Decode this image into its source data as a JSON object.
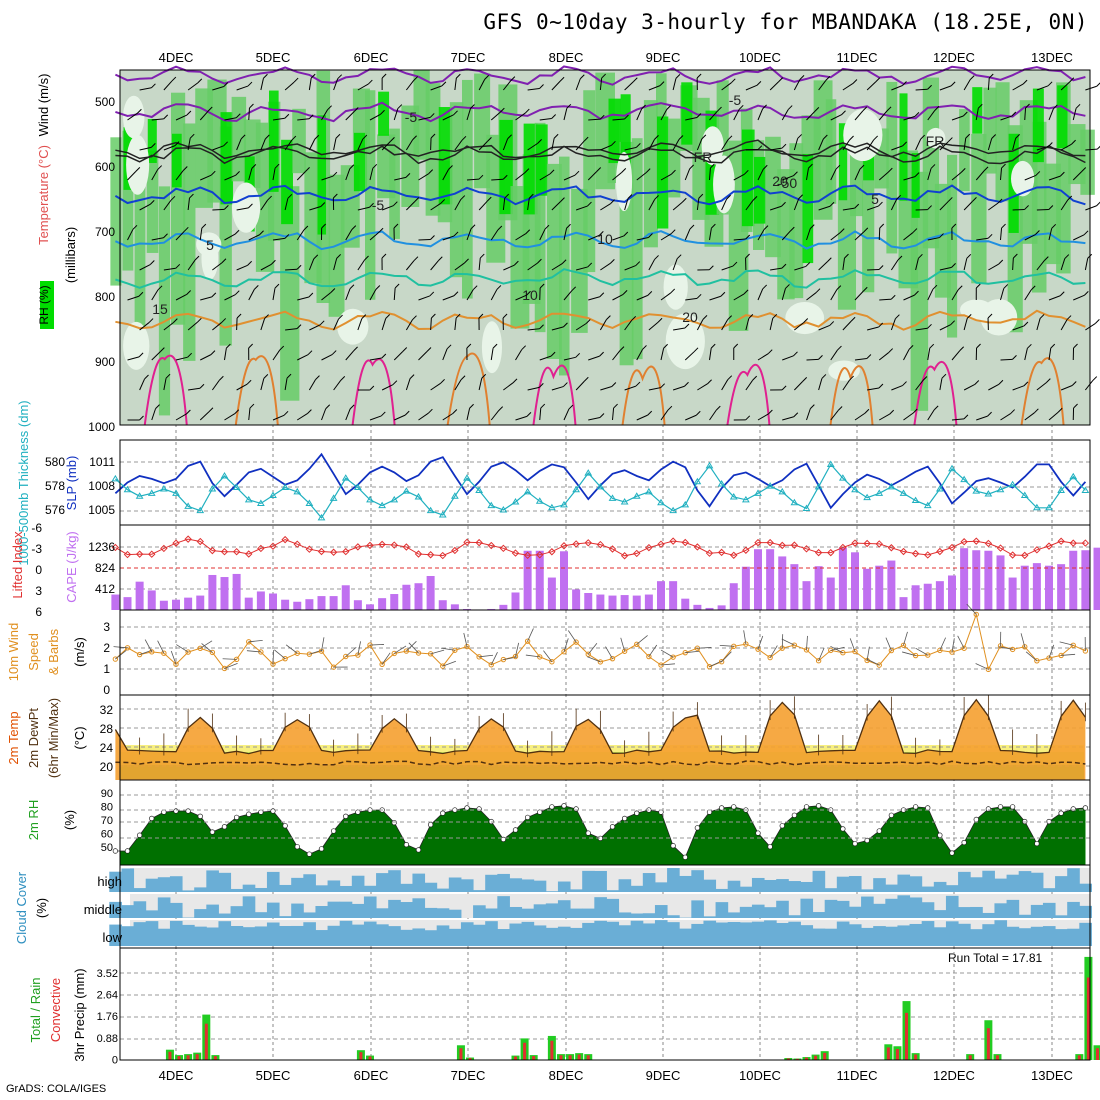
{
  "title": "GFS 0~10day 3-hourly for MBANDAKA (18.25E, 0N)",
  "credit": "GrADS: COLA/IGES",
  "dates": [
    "4DEC",
    "5DEC",
    "6DEC",
    "7DEC",
    "8DEC",
    "9DEC",
    "10DEC",
    "11DEC",
    "12DEC",
    "13DEC"
  ],
  "colors": {
    "rh_dark": "#00dd00",
    "rh_mid": "#66cc66",
    "rh_light": "#c8d8c8",
    "rh_pale": "#e8f4e8",
    "slp": "#1030c0",
    "thickness": "#20b0c0",
    "lifted": "#e03030",
    "cape": "#c070f0",
    "wind": "#e09020",
    "temp_hot": "#e05000",
    "rh2m": "#00b000",
    "cloud": "#6aaed6",
    "cloud_clear": "#e8e8e8",
    "precip_total": "#22cc22",
    "precip_conv": "#e03030"
  },
  "panels": {
    "upper": {
      "ylabel_rh": "RH (%)",
      "ylabel_temp": "Temperature (°C)",
      "ylabel_wind": "Wind (m/s)",
      "ylabel_mb": "(millibars)",
      "y_ticks": [
        "500",
        "600",
        "700",
        "800",
        "900",
        "1000"
      ],
      "contour_labels": [
        "-5",
        "-5",
        "FR",
        "FR",
        "-5",
        "5",
        "5",
        "10",
        "10",
        "15",
        "20",
        "20",
        "-50"
      ]
    },
    "slp": {
      "ylabel_left": "1000-500mb Thickness (dm)",
      "ylabel_right": "SLP (mb)",
      "left_ticks": [
        "580",
        "578",
        "576"
      ],
      "right_ticks": [
        "1011",
        "1008",
        "1005"
      ]
    },
    "cape": {
      "ylabel_left": "Lifted Index",
      "ylabel_right": "CAPE (J/kg)",
      "left_ticks": [
        "-6",
        "-3",
        "0",
        "3",
        "6"
      ],
      "right_ticks": [
        "1236",
        "824",
        "412"
      ]
    },
    "wind10": {
      "ylabel": "10m Wind Speed & Barbs",
      "unit": "(m/s)",
      "ticks": [
        "3",
        "2",
        "1",
        "0"
      ]
    },
    "temp2m": {
      "ylabel": "2m Temp 2m DewPt (6hr Min/Max) (°C)",
      "ticks": [
        "32",
        "28",
        "24",
        "20"
      ]
    },
    "rh2m": {
      "ylabel": "2m RH",
      "unit": "(%)",
      "ticks": [
        "90",
        "80",
        "70",
        "60",
        "50"
      ]
    },
    "cloud": {
      "ylabel": "Cloud Cover",
      "unit": "(%)",
      "levels": [
        "high",
        "middle",
        "low"
      ]
    },
    "precip": {
      "ylabel_total": "Total / Rain",
      "ylabel_conv": "Convective",
      "ylabel": "3hr Precip (mm)",
      "ticks": [
        "3.52",
        "2.64",
        "1.76",
        "0.88",
        "0"
      ],
      "run_total": "Run Total = 17.81"
    }
  },
  "chart_data": [
    {
      "type": "line",
      "title": "SLP (mb)",
      "series": [
        {
          "name": "SLP",
          "values": [
            1007.0,
            1008.5,
            1009.4,
            1009.0,
            1008.4,
            1009.0,
            1010.8,
            1011.4,
            1008.4,
            1006.6,
            1008.2,
            1009.9,
            1010.4,
            1009.3,
            1008.2,
            1008.8,
            1010.4,
            1012.4,
            1009.7,
            1006.9,
            1008.2,
            1009.9,
            1010.7,
            1009.9,
            1008.7,
            1009.5,
            1011.4,
            1012.0,
            1009.4,
            1006.9,
            1008.6,
            1010.7,
            1011.3,
            1010.2,
            1008.8,
            1010.1,
            1011.0,
            1010.6,
            1008.5,
            1006.2,
            1008.1,
            1009.7,
            1010.2,
            1009.4,
            1008.8,
            1010.3,
            1011.4,
            1010.6,
            1007.4,
            1005.2,
            1007.7,
            1009.5,
            1009.9,
            1009.0,
            1008.0,
            1008.8,
            1010.3,
            1011.1,
            1008.1,
            1005.0,
            1006.9,
            1008.5,
            1009.6,
            1009.0,
            1008.1,
            1009.0,
            1010.0,
            1010.7,
            1008.4,
            1005.6,
            1007.1,
            1008.7,
            1009.1,
            1008.5,
            1007.8,
            1009.3,
            1011.0,
            1011.0,
            1008.6,
            1006.7,
            1008.6
          ]
        }
      ]
    },
    {
      "type": "bar",
      "title": "CAPE (J/kg)",
      "series": [
        {
          "name": "CAPE",
          "values": [
            300,
            250,
            550,
            380,
            180,
            200,
            240,
            280,
            680,
            640,
            700,
            240,
            360,
            320,
            200,
            160,
            210,
            270,
            270,
            480,
            190,
            110,
            230,
            310,
            490,
            520,
            660,
            190,
            110,
            20,
            10,
            20,
            100,
            340,
            1150,
            1150,
            630,
            1140,
            400,
            330,
            300,
            280,
            290,
            280,
            300,
            560,
            560,
            220,
            100,
            40,
            90,
            520,
            840,
            1180,
            1180,
            1040,
            890,
            560,
            850,
            630,
            1210,
            1120,
            800,
            860,
            960,
            250,
            480,
            510,
            560,
            670,
            1200,
            1160,
            1150,
            1060,
            630,
            860,
            910,
            860,
            890,
            1150,
            1160,
            1210,
            850,
            740,
            770,
            850,
            1100
          ]
        }
      ]
    },
    {
      "type": "line",
      "title": "2m RH (%)",
      "series": [
        {
          "name": "2m RH",
          "values": [
            51,
            51,
            66,
            82,
            88,
            89,
            89,
            84,
            69,
            74,
            83,
            86,
            88,
            89,
            75,
            55,
            48,
            53,
            70,
            84,
            88,
            90,
            90,
            78,
            57,
            52,
            76,
            87,
            90,
            92,
            91,
            79,
            62,
            71,
            83,
            88,
            93,
            94,
            91,
            68,
            63,
            74,
            82,
            87,
            90,
            88,
            56,
            45,
            73,
            88,
            92,
            93,
            90,
            68,
            55,
            75,
            85,
            93,
            94,
            90,
            72,
            58,
            61,
            70,
            85,
            90,
            93,
            92,
            66,
            49,
            59,
            81,
            91,
            93,
            93,
            79,
            58,
            79,
            87,
            91,
            92
          ]
        }
      ]
    },
    {
      "type": "bar",
      "title": "3hr Precip (mm)",
      "series": [
        {
          "name": "Total",
          "values": [
            0,
            0,
            0,
            0,
            0,
            0,
            0.42,
            0.2,
            0.24,
            0.3,
            1.85,
            0.2,
            0,
            0,
            0,
            0,
            0,
            0,
            0,
            0,
            0,
            0,
            0,
            0,
            0,
            0,
            0,
            0.4,
            0.18,
            0,
            0,
            0,
            0,
            0,
            0,
            0,
            0,
            0,
            0.6,
            0.1,
            0,
            0,
            0,
            0,
            0.18,
            0.88,
            0.2,
            0,
            0.98,
            0.24,
            0.24,
            0.28,
            0.24,
            0,
            0,
            0,
            0,
            0,
            0,
            0,
            0,
            0,
            0,
            0,
            0,
            0,
            0,
            0,
            0,
            0,
            0,
            0,
            0,
            0,
            0.08,
            0.06,
            0.12,
            0.22,
            0.36,
            0,
            0,
            0,
            0,
            0,
            0,
            0.64,
            0.56,
            2.4,
            0.28,
            0,
            0,
            0,
            0,
            0,
            0.24,
            0,
            1.62,
            0.24,
            0,
            0,
            0,
            0,
            0,
            0,
            0,
            0,
            0.24,
            4.2,
            0.6
          ]
        }
      ]
    }
  ]
}
